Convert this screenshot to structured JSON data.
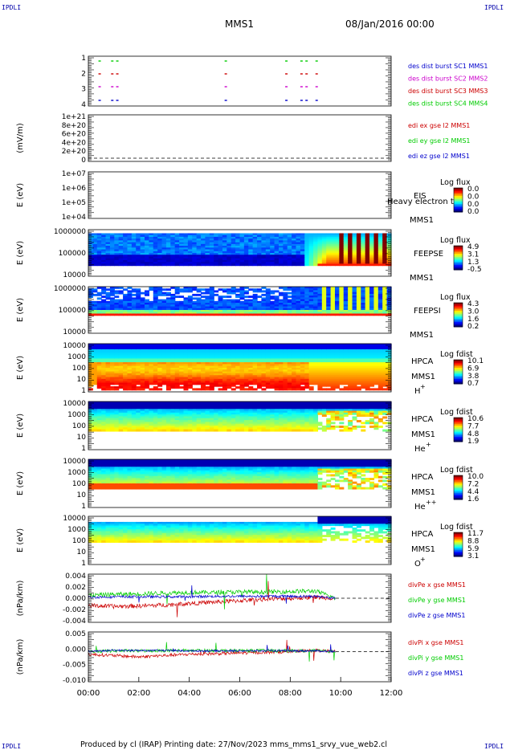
{
  "header": {
    "corner_tl": "IPDLI",
    "corner_tr": "IPDLI",
    "corner_bl": "IPDLI",
    "corner_br": "IPDLI",
    "mission": "MMS1",
    "date": "08/Jan/2016 00:00"
  },
  "footer": {
    "text": "Produced by cl (IRAP)   Printing date: 27/Nov/2023   mms_mms1_srvy_vue_web2.cl"
  },
  "colors": {
    "blue": "#0000cc",
    "red": "#cc0000",
    "green": "#00cc00",
    "magenta": "#cc00cc"
  },
  "chart_data": [
    {
      "type": "scatter",
      "panel": "des-dist-burst",
      "yticks": [
        "1",
        "2",
        "3",
        "4"
      ],
      "legend": [
        {
          "label": "des dist burst SC1 MMS1",
          "color": "#0000cc"
        },
        {
          "label": "des dist burst SC2 MMS2",
          "color": "#cc00cc"
        },
        {
          "label": "des dist burst SC3 MMS3",
          "color": "#cc0000"
        },
        {
          "label": "des dist burst SC4 MMS4",
          "color": "#00cc00"
        }
      ],
      "bursts_hours": [
        0.4,
        0.9,
        1.1,
        5.4,
        7.8,
        8.4,
        8.6,
        9.0
      ]
    },
    {
      "type": "line",
      "panel": "edi",
      "ylabel": "(mV/m)",
      "yticks": [
        "1e+21",
        "8e+20",
        "6e+20",
        "4e+20",
        "2e+20",
        "0"
      ],
      "legend": [
        {
          "label": "edi ex gse l2 MMS1",
          "color": "#cc0000"
        },
        {
          "label": "edi ey gse l2 MMS1",
          "color": "#00cc00"
        },
        {
          "label": "edi ez gse l2 MMS1",
          "color": "#0000cc"
        }
      ]
    },
    {
      "type": "heatmap",
      "panel": "eis",
      "ylabel": "E (eV)",
      "yticks": [
        "1e+07",
        "1e+06",
        "1e+05",
        "1e+04"
      ],
      "instrument": "EIS",
      "overlay": "Heavy electron to",
      "sc": "MMS1",
      "cbar_title": "Log flux",
      "cbar_ticks": [
        "0.0",
        "0.0",
        "0.0",
        "0.0"
      ]
    },
    {
      "type": "heatmap",
      "panel": "feepse",
      "ylabel": "E (eV)",
      "yticks": [
        "1000000",
        "100000",
        "10000"
      ],
      "instrument": "FEEPSE",
      "sc": "MMS1",
      "cbar_title": "Log flux",
      "cbar_ticks": [
        "4.9",
        "3.1",
        "1.3",
        "-0.5"
      ]
    },
    {
      "type": "heatmap",
      "panel": "feepsi",
      "ylabel": "E (eV)",
      "yticks": [
        "1000000",
        "100000",
        "10000"
      ],
      "instrument": "FEEPSI",
      "sc": "MMS1",
      "cbar_title": "Log flux",
      "cbar_ticks": [
        "4.3",
        "3.0",
        "1.6",
        "0.2"
      ]
    },
    {
      "type": "heatmap",
      "panel": "hpca-h",
      "ylabel": "E (eV)",
      "yticks": [
        "10000",
        "1000",
        "100",
        "10",
        "1"
      ],
      "instrument": "HPCA",
      "sc": "MMS1",
      "species": "H",
      "charge": "+",
      "cbar_title": "Log fdist",
      "cbar_ticks": [
        "10.1",
        "6.9",
        "3.8",
        "0.7"
      ]
    },
    {
      "type": "heatmap",
      "panel": "hpca-he",
      "ylabel": "E (eV)",
      "yticks": [
        "10000",
        "1000",
        "100",
        "10",
        "1"
      ],
      "instrument": "HPCA",
      "sc": "MMS1",
      "species": "He",
      "charge": "+",
      "cbar_title": "Log fdist",
      "cbar_ticks": [
        "10.6",
        "7.7",
        "4.8",
        "1.9"
      ]
    },
    {
      "type": "heatmap",
      "panel": "hpca-he2",
      "ylabel": "E (eV)",
      "yticks": [
        "10000",
        "1000",
        "100",
        "10",
        "1"
      ],
      "instrument": "HPCA",
      "sc": "MMS1",
      "species": "He",
      "charge": "++",
      "cbar_title": "Log fdist",
      "cbar_ticks": [
        "10.0",
        "7.2",
        "4.4",
        "1.6"
      ]
    },
    {
      "type": "heatmap",
      "panel": "hpca-o",
      "ylabel": "E (eV)",
      "yticks": [
        "10000",
        "1000",
        "100",
        "10",
        "1"
      ],
      "instrument": "HPCA",
      "sc": "MMS1",
      "species": "O",
      "charge": "+",
      "cbar_title": "Log fdist",
      "cbar_ticks": [
        "11.7",
        "8.8",
        "5.9",
        "3.1"
      ]
    },
    {
      "type": "line",
      "panel": "divpe",
      "ylabel": "(nPa/km)",
      "yticks": [
        "0.004",
        "0.002",
        "0.000",
        "-0.002",
        "-0.004"
      ],
      "ylim": [
        -0.005,
        0.005
      ],
      "legend": [
        {
          "label": "divPe x gse MMS1",
          "color": "#cc0000"
        },
        {
          "label": "divPe y gse MMS1",
          "color": "#00cc00"
        },
        {
          "label": "divPe z gse MMS1",
          "color": "#0000cc"
        }
      ],
      "x": [
        0,
        1,
        2,
        3,
        4,
        5,
        6,
        7,
        8,
        9,
        9.8
      ],
      "series": [
        {
          "values": [
            -0.0015,
            -0.0017,
            -0.0016,
            -0.0014,
            -0.0011,
            -0.0008,
            -0.0005,
            -0.0002,
            0.0,
            0.0002,
            0.0
          ]
        },
        {
          "values": [
            0.0006,
            0.0008,
            0.0009,
            0.0011,
            0.0012,
            0.0012,
            0.0013,
            0.0013,
            0.0014,
            0.0015,
            0.0
          ]
        },
        {
          "values": [
            0.0002,
            0.0003,
            0.0003,
            0.0003,
            0.0003,
            0.0004,
            0.0004,
            0.0004,
            0.0004,
            0.0004,
            0.0
          ]
        }
      ]
    },
    {
      "type": "line",
      "panel": "divpi",
      "ylabel": "(nPa/km)",
      "yticks": [
        "0.005",
        "0.000",
        "-0.005",
        "-0.010"
      ],
      "ylim": [
        -0.0115,
        0.0075
      ],
      "legend": [
        {
          "label": "divPi x gse MMS1",
          "color": "#cc0000"
        },
        {
          "label": "divPi y gse MMS1",
          "color": "#00cc00"
        },
        {
          "label": "divPi z gse MMS1",
          "color": "#0000cc"
        }
      ],
      "x": [
        0,
        1,
        2,
        3,
        4,
        5,
        6,
        7,
        8,
        9,
        9.8
      ],
      "series": [
        {
          "values": [
            -0.001,
            -0.0015,
            -0.002,
            -0.0015,
            -0.001,
            -0.0008,
            -0.0005,
            -0.0003,
            0.0,
            0.0005,
            0.0
          ]
        },
        {
          "values": [
            0.0,
            0.0003,
            0.0003,
            0.0004,
            0.0004,
            0.0004,
            0.0004,
            0.0004,
            0.0003,
            0.0003,
            0.0
          ]
        },
        {
          "values": [
            0.0,
            0.0005,
            0.0004,
            0.0004,
            0.0003,
            0.0003,
            0.0003,
            0.0003,
            0.0003,
            0.0003,
            0.0
          ]
        }
      ]
    }
  ],
  "xaxis": {
    "ticks": [
      "00:00",
      "02:00",
      "04:00",
      "06:00",
      "08:00",
      "10:00",
      "12:00"
    ],
    "range_hours": [
      0,
      12
    ]
  }
}
